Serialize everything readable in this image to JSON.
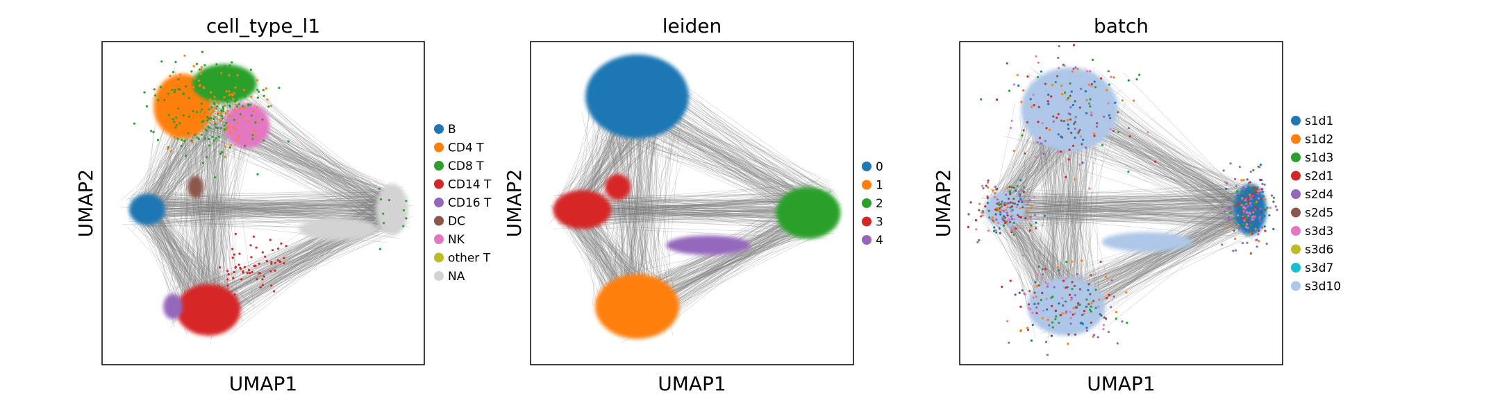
{
  "chart_data": [
    {
      "type": "scatter",
      "title": "cell_type_l1",
      "xlabel": "UMAP1",
      "ylabel": "UMAP2",
      "grid": false,
      "ticks": false,
      "legend_position": "right",
      "categories": [
        "B",
        "CD4 T",
        "CD8 T",
        "CD14 T",
        "CD16 T",
        "DC",
        "NK",
        "other T",
        "NA"
      ],
      "colors": [
        "#1f77b4",
        "#ff7f0e",
        "#2ca02c",
        "#d62728",
        "#9467bd",
        "#8c564b",
        "#e377c2",
        "#bcbd22",
        "#d3d3d3"
      ]
    },
    {
      "type": "scatter",
      "title": "leiden",
      "xlabel": "UMAP1",
      "ylabel": "UMAP2",
      "grid": false,
      "ticks": false,
      "legend_position": "right",
      "categories": [
        "0",
        "1",
        "2",
        "3",
        "4"
      ],
      "colors": [
        "#1f77b4",
        "#ff7f0e",
        "#2ca02c",
        "#d62728",
        "#9467bd"
      ]
    },
    {
      "type": "scatter",
      "title": "batch",
      "xlabel": "UMAP1",
      "ylabel": "UMAP2",
      "grid": false,
      "ticks": false,
      "legend_position": "right",
      "categories": [
        "s1d1",
        "s1d2",
        "s1d3",
        "s2d1",
        "s2d4",
        "s2d5",
        "s3d3",
        "s3d6",
        "s3d7",
        "s3d10"
      ],
      "colors": [
        "#1f77b4",
        "#ff7f0e",
        "#2ca02c",
        "#d62728",
        "#9467bd",
        "#8c564b",
        "#e377c2",
        "#bcbd22",
        "#17becf",
        "#aec7e8"
      ]
    }
  ],
  "style": {
    "edge_color": "#7f7f7f",
    "frame_color": "#000000"
  }
}
